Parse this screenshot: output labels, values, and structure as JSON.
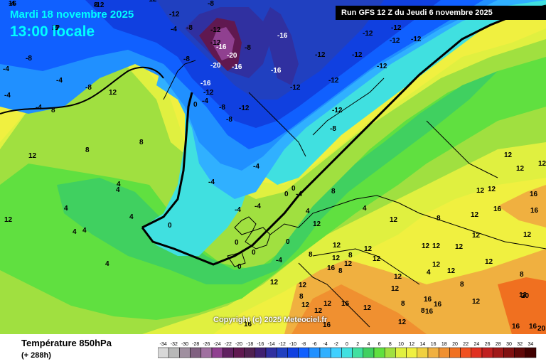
{
  "header": {
    "date_label": "Mardi 18 novembre 2025",
    "time_label": "13:00 locale",
    "run_label": "Run GFS 12 Z du Jeudi 6 novembre 2025"
  },
  "footer": {
    "parameter": "Température 850hPa",
    "lead_time": "(+ 288h)",
    "copyright": "Copyright (c) 2025 Meteociel.fr"
  },
  "legend": {
    "ticks": [
      "-34",
      "-32",
      "-30",
      "-28",
      "-26",
      "-24",
      "-22",
      "-20",
      "-18",
      "-16",
      "-14",
      "-12",
      "-10",
      "-8",
      "-6",
      "-4",
      "-2",
      "0",
      "2",
      "4",
      "6",
      "8",
      "10",
      "12",
      "14",
      "16",
      "18",
      "20",
      "22",
      "24",
      "26",
      "28",
      "30",
      "32",
      "34"
    ],
    "colors": [
      "#d8d8d8",
      "#b8b8b8",
      "#a090a0",
      "#806080",
      "#a070a0",
      "#904090",
      "#602060",
      "#601850",
      "#502050",
      "#402070",
      "#3030a0",
      "#2040c0",
      "#1040e0",
      "#1060ff",
      "#2090ff",
      "#30b0ff",
      "#40d0ff",
      "#40e0e0",
      "#40e0a0",
      "#40d060",
      "#60e040",
      "#a0e040",
      "#e0f040",
      "#f0f040",
      "#f0d040",
      "#f0b040",
      "#f09030",
      "#f07020",
      "#f05020",
      "#e03020",
      "#c02020",
      "#a01818",
      "#801010",
      "#600808",
      "#400000"
    ]
  },
  "map_labels": [
    {
      "t": "-4"
    },
    {
      "t": "-8"
    },
    {
      "t": "-12"
    },
    {
      "t": "-12"
    },
    {
      "t": "-4"
    },
    {
      "t": "-8"
    },
    {
      "t": "-12"
    },
    {
      "t": "-12"
    },
    {
      "t": "-8"
    },
    {
      "t": "-16"
    },
    {
      "t": "-12"
    },
    {
      "t": "-12"
    },
    {
      "t": "-12"
    },
    {
      "t": "-8"
    },
    {
      "t": "-20"
    },
    {
      "t": "-16"
    },
    {
      "t": "-12"
    },
    {
      "t": "-20"
    },
    {
      "t": "-16"
    },
    {
      "t": "-16"
    },
    {
      "t": "-12"
    },
    {
      "t": "-12"
    },
    {
      "t": "-12"
    },
    {
      "t": "-12"
    },
    {
      "t": "-12"
    },
    {
      "t": "-12"
    },
    {
      "t": "-12"
    },
    {
      "t": "-8"
    },
    {
      "t": "-4"
    },
    {
      "t": "-8"
    },
    {
      "t": "-4"
    },
    {
      "t": "-8"
    },
    {
      "t": "-12"
    },
    {
      "t": "-12"
    },
    {
      "t": "-8"
    },
    {
      "t": "-4"
    },
    {
      "t": "-4"
    },
    {
      "t": "-4"
    },
    {
      "t": "-8"
    },
    {
      "t": "-8"
    },
    {
      "t": "-16"
    },
    {
      "t": "0"
    },
    {
      "t": "-4"
    },
    {
      "t": "-4"
    },
    {
      "t": "-4"
    },
    {
      "t": "0"
    },
    {
      "t": "-4"
    },
    {
      "t": "-4"
    },
    {
      "t": "0"
    },
    {
      "t": "0"
    },
    {
      "t": "0"
    },
    {
      "t": "0"
    },
    {
      "t": "0"
    },
    {
      "t": "-4"
    },
    {
      "t": "0"
    },
    {
      "t": "4"
    },
    {
      "t": "4"
    },
    {
      "t": "8"
    },
    {
      "t": "12"
    },
    {
      "t": "8"
    },
    {
      "t": "4"
    },
    {
      "t": "12"
    },
    {
      "t": "8"
    },
    {
      "t": "12"
    },
    {
      "t": "4"
    },
    {
      "t": "4"
    },
    {
      "t": "4"
    },
    {
      "t": "4"
    },
    {
      "t": "4"
    },
    {
      "t": "4"
    },
    {
      "t": "4"
    },
    {
      "t": "8"
    },
    {
      "t": "12"
    },
    {
      "t": "12"
    },
    {
      "t": "12"
    },
    {
      "t": "12"
    },
    {
      "t": "12"
    },
    {
      "t": "16"
    },
    {
      "t": "12"
    },
    {
      "t": "16"
    },
    {
      "t": "12"
    },
    {
      "t": "8"
    },
    {
      "t": "12"
    },
    {
      "t": "12"
    },
    {
      "t": "12"
    },
    {
      "t": "16"
    },
    {
      "t": "12"
    },
    {
      "t": "16"
    },
    {
      "t": "16"
    },
    {
      "t": "12"
    },
    {
      "t": "12"
    },
    {
      "t": "12"
    },
    {
      "t": "8"
    },
    {
      "t": "12"
    },
    {
      "t": "8"
    },
    {
      "t": "12"
    },
    {
      "t": "12"
    },
    {
      "t": "8"
    },
    {
      "t": "12"
    },
    {
      "t": "12"
    },
    {
      "t": "12"
    },
    {
      "t": "12"
    },
    {
      "t": "12"
    },
    {
      "t": "16"
    },
    {
      "t": "8"
    },
    {
      "t": "8"
    },
    {
      "t": "8"
    },
    {
      "t": "12"
    },
    {
      "t": "12"
    },
    {
      "t": "16"
    },
    {
      "t": "12"
    },
    {
      "t": "16"
    },
    {
      "t": "20"
    },
    {
      "t": "16"
    },
    {
      "t": "20"
    },
    {
      "t": "12"
    },
    {
      "t": "8"
    },
    {
      "t": "8"
    },
    {
      "t": "16"
    },
    {
      "t": "16"
    },
    {
      "t": "12"
    },
    {
      "t": "12"
    },
    {
      "t": "12"
    },
    {
      "t": "12"
    },
    {
      "t": "12"
    },
    {
      "t": "16"
    },
    {
      "t": "12"
    },
    {
      "t": "16"
    },
    {
      "t": "12"
    },
    {
      "t": "8"
    }
  ]
}
